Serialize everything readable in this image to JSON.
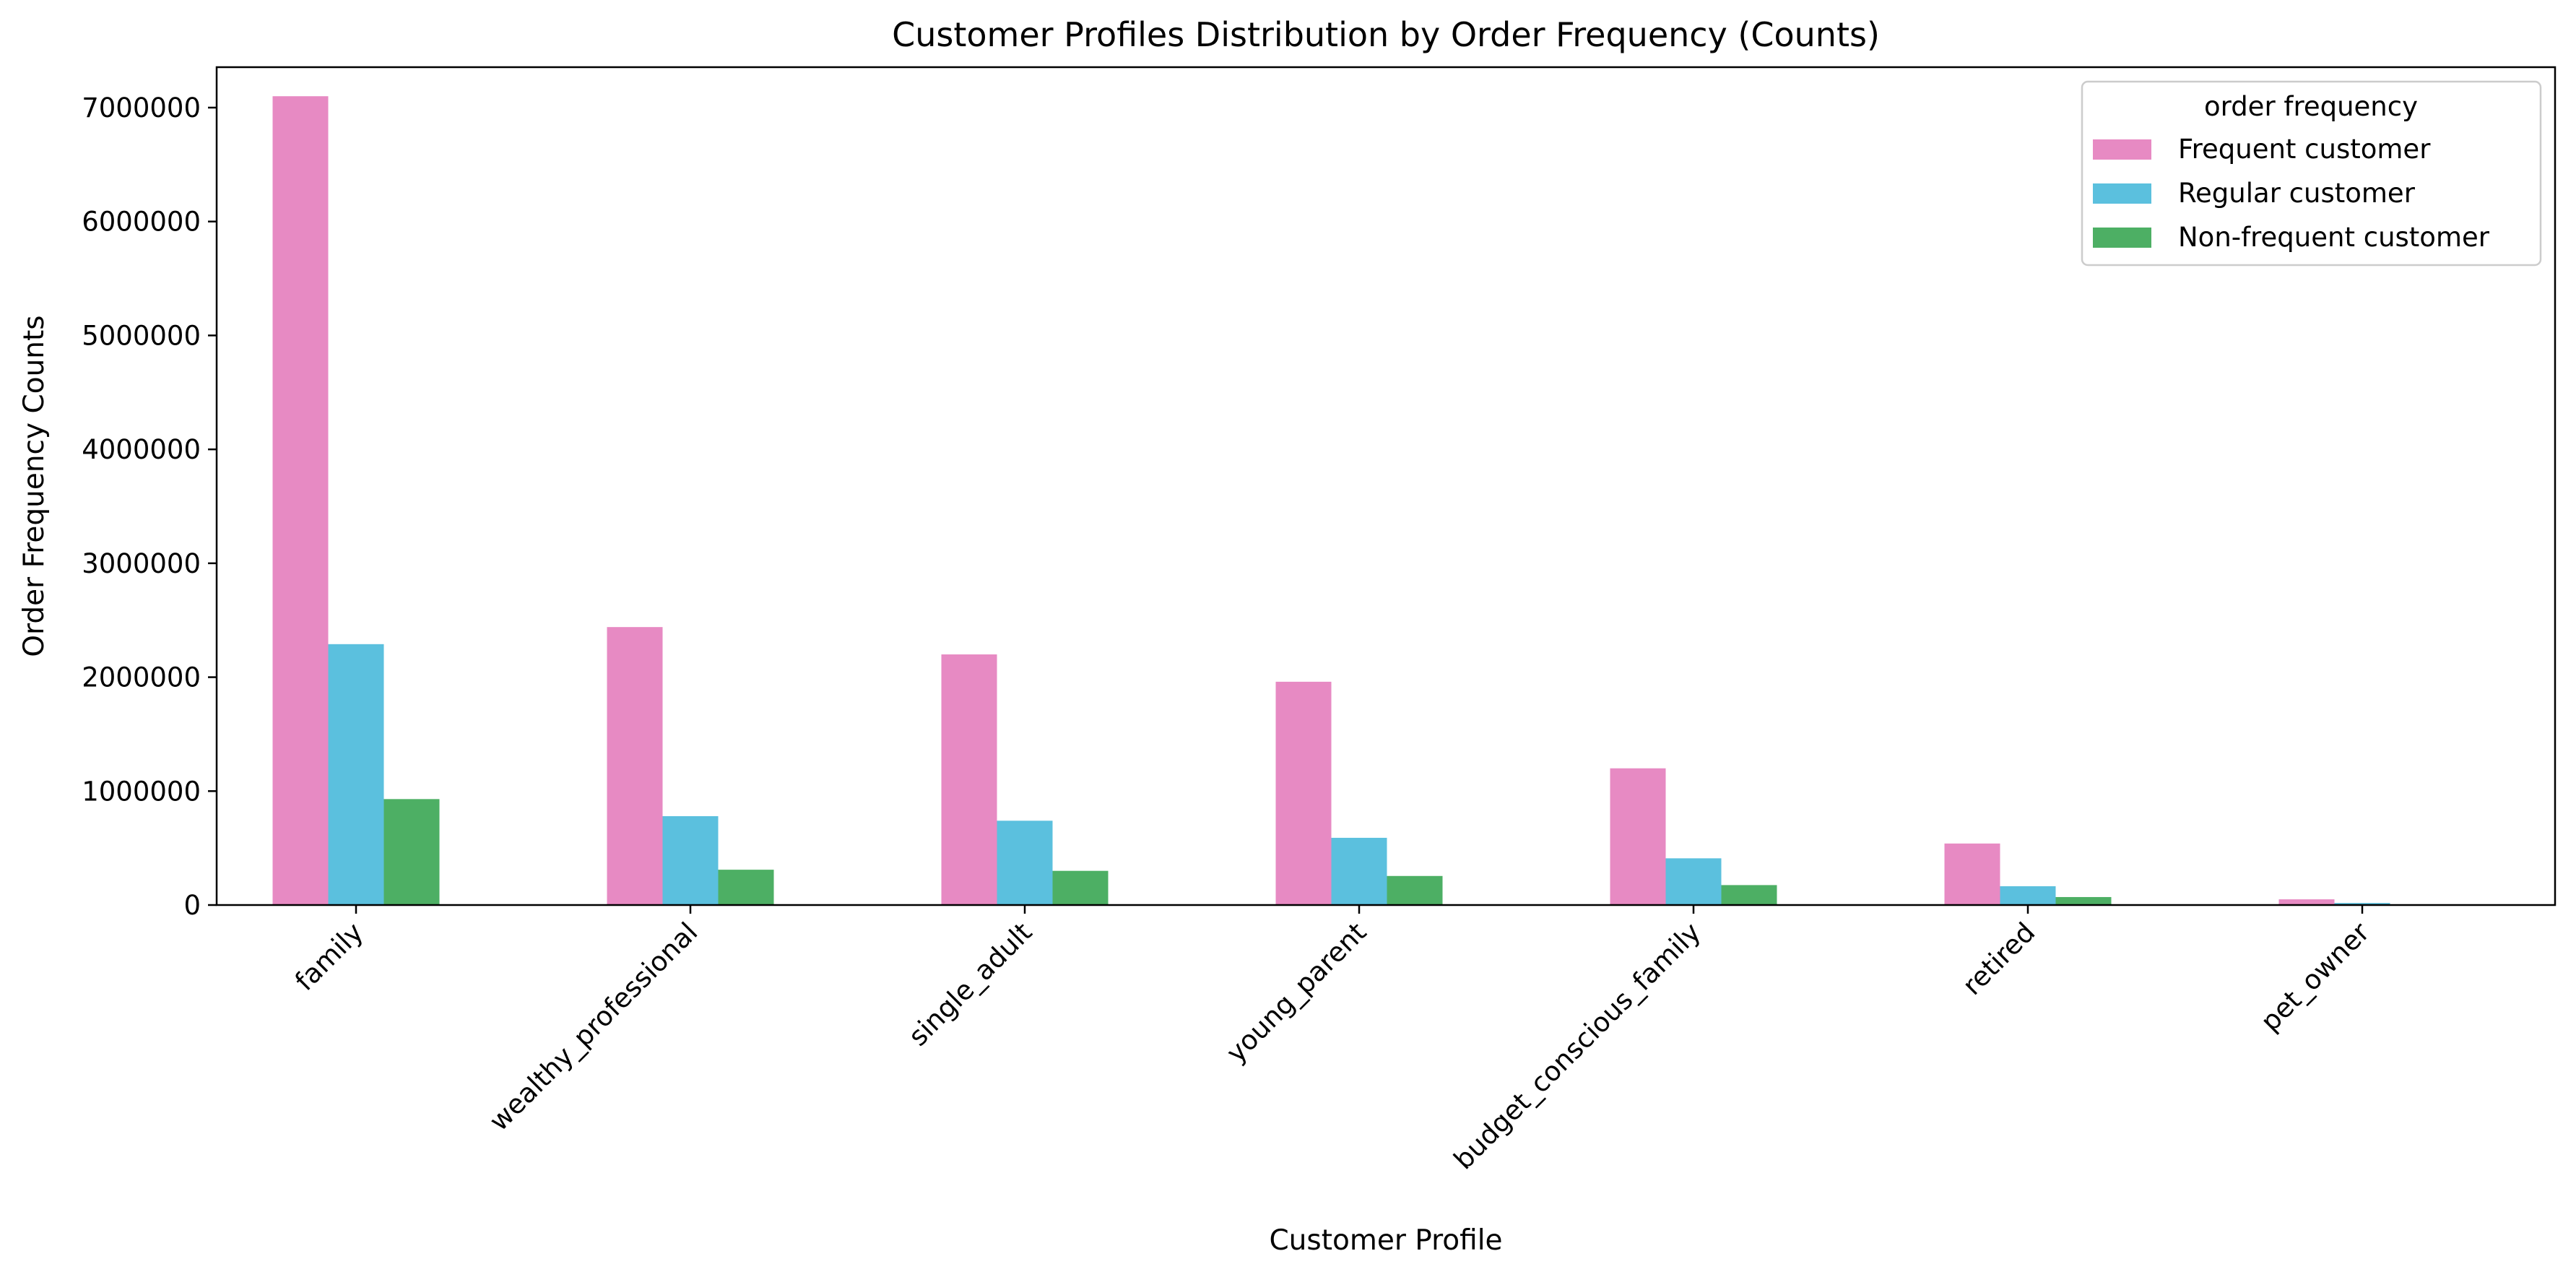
{
  "chart_data": {
    "type": "bar",
    "title": "Customer Profiles Distribution by Order Frequency (Counts)",
    "xlabel": "Customer Profile",
    "ylabel": "Order Frequency Counts",
    "categories": [
      "family",
      "wealthy_professional",
      "single_adult",
      "young_parent",
      "budget_conscious_family",
      "retired",
      "pet_owner"
    ],
    "series": [
      {
        "name": "Frequent customer",
        "color": "#e78ac3",
        "values": [
          7100000,
          2440000,
          2200000,
          1960000,
          1200000,
          540000,
          50000
        ]
      },
      {
        "name": "Regular customer",
        "color": "#5bc0de",
        "values": [
          2290000,
          780000,
          740000,
          590000,
          410000,
          165000,
          18000
        ]
      },
      {
        "name": "Non-frequent customer",
        "color": "#4daf64",
        "values": [
          930000,
          310000,
          300000,
          255000,
          175000,
          70000,
          6000
        ]
      }
    ],
    "ylim": [
      0,
      7355000
    ],
    "yticks": [
      0,
      1000000,
      2000000,
      3000000,
      4000000,
      5000000,
      6000000,
      7000000
    ],
    "ytick_labels": [
      "0",
      "1000000",
      "2000000",
      "3000000",
      "4000000",
      "5000000",
      "6000000",
      "7000000"
    ],
    "legend": {
      "title": "order frequency",
      "position": "top-right"
    },
    "grid": false
  }
}
